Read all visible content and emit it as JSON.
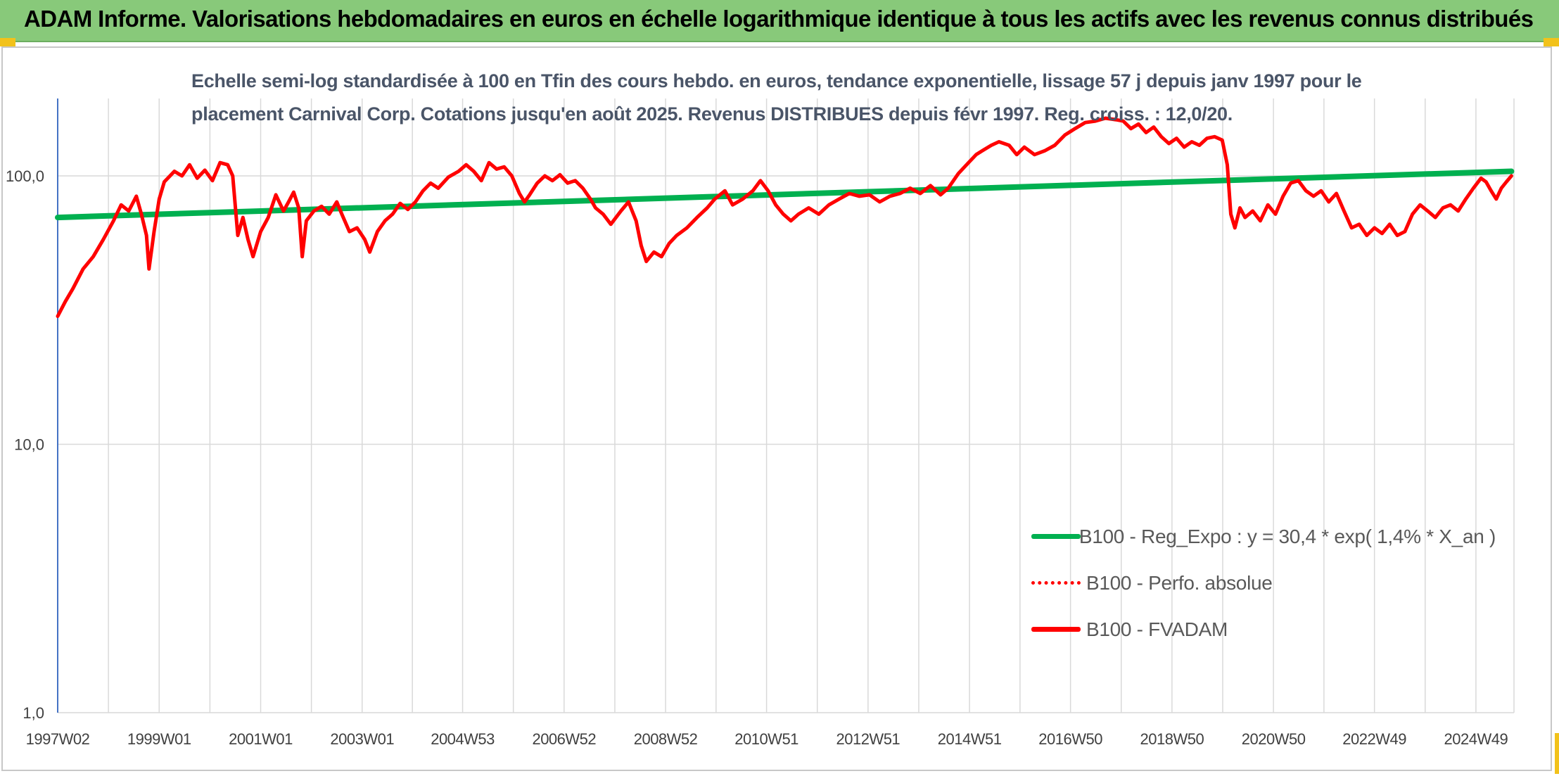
{
  "header": {
    "title": "ADAM Informe. Valorisations hebdomadaires en euros en échelle logarithmique identique à tous les actifs avec les revenus connus distribués"
  },
  "colors": {
    "header_bg": "#88c97a",
    "accent": "#f2c21b",
    "trend": "#00b050",
    "series": "#ff0000",
    "grid": "#d9d9d9",
    "axis": "#4472c4"
  },
  "chart_data": {
    "type": "line",
    "title_line1": "Echelle semi-log standardisée à 100 en Tfin des cours hebdo. en euros, tendance exponentielle, lissage 57 j depuis janv 1997 pour le",
    "title_line2": "placement Carnival Corp. Cotations jusqu'en août 2025. Revenus DISTRIBUES depuis févr 1997. Reg. croiss. : 12,0/20.",
    "y_scale": "log",
    "ylim": [
      1,
      200
    ],
    "y_ticks": [
      "1,0",
      "10,0",
      "100,0"
    ],
    "x_ticks": [
      "1997W02",
      "1999W01",
      "2001W01",
      "2003W01",
      "2004W53",
      "2006W52",
      "2008W52",
      "2010W51",
      "2012W51",
      "2014W51",
      "2016W50",
      "2018W50",
      "2020W50",
      "2022W49",
      "2024W49"
    ],
    "grid": true,
    "legend_position": "right-bottom",
    "series": [
      {
        "name": "B100 - Reg_Expo : y = 30,4 * exp( 1,4% *  X_an )",
        "style": "solid-green",
        "points": [
          [
            1997.0,
            70.0
          ],
          [
            2025.65,
            104.0
          ]
        ]
      },
      {
        "name": "B100 - Perfo. absolue",
        "style": "dotted-red",
        "points": []
      },
      {
        "name": "B100 - FVADAM",
        "style": "solid-red",
        "points": [
          [
            1997.0,
            30
          ],
          [
            1997.15,
            34
          ],
          [
            1997.3,
            38
          ],
          [
            1997.5,
            45
          ],
          [
            1997.7,
            50
          ],
          [
            1997.9,
            58
          ],
          [
            1998.1,
            68
          ],
          [
            1998.25,
            78
          ],
          [
            1998.4,
            74
          ],
          [
            1998.55,
            84
          ],
          [
            1998.65,
            72
          ],
          [
            1998.75,
            60
          ],
          [
            1998.8,
            45
          ],
          [
            1998.9,
            62
          ],
          [
            1999.0,
            82
          ],
          [
            1999.1,
            95
          ],
          [
            1999.3,
            104
          ],
          [
            1999.45,
            100
          ],
          [
            1999.6,
            110
          ],
          [
            1999.75,
            98
          ],
          [
            1999.9,
            105
          ],
          [
            2000.05,
            96
          ],
          [
            2000.2,
            112
          ],
          [
            2000.35,
            110
          ],
          [
            2000.45,
            100
          ],
          [
            2000.55,
            60
          ],
          [
            2000.65,
            70
          ],
          [
            2000.75,
            58
          ],
          [
            2000.85,
            50
          ],
          [
            2001.0,
            62
          ],
          [
            2001.15,
            70
          ],
          [
            2001.3,
            85
          ],
          [
            2001.45,
            74
          ],
          [
            2001.55,
            80
          ],
          [
            2001.65,
            87
          ],
          [
            2001.75,
            76
          ],
          [
            2001.82,
            50
          ],
          [
            2001.9,
            68
          ],
          [
            2002.05,
            74
          ],
          [
            2002.2,
            77
          ],
          [
            2002.35,
            72
          ],
          [
            2002.5,
            80
          ],
          [
            2002.6,
            72
          ],
          [
            2002.75,
            62
          ],
          [
            2002.9,
            64
          ],
          [
            2003.05,
            58
          ],
          [
            2003.15,
            52
          ],
          [
            2003.3,
            62
          ],
          [
            2003.45,
            68
          ],
          [
            2003.6,
            72
          ],
          [
            2003.75,
            79
          ],
          [
            2003.9,
            75
          ],
          [
            2004.05,
            80
          ],
          [
            2004.2,
            88
          ],
          [
            2004.35,
            94
          ],
          [
            2004.5,
            90
          ],
          [
            2004.7,
            99
          ],
          [
            2004.9,
            104
          ],
          [
            2005.05,
            110
          ],
          [
            2005.2,
            104
          ],
          [
            2005.35,
            96
          ],
          [
            2005.5,
            112
          ],
          [
            2005.65,
            106
          ],
          [
            2005.8,
            108
          ],
          [
            2005.95,
            100
          ],
          [
            2006.1,
            86
          ],
          [
            2006.2,
            80
          ],
          [
            2006.3,
            85
          ],
          [
            2006.45,
            94
          ],
          [
            2006.6,
            100
          ],
          [
            2006.75,
            96
          ],
          [
            2006.9,
            101
          ],
          [
            2007.05,
            94
          ],
          [
            2007.2,
            96
          ],
          [
            2007.35,
            90
          ],
          [
            2007.5,
            82
          ],
          [
            2007.6,
            76
          ],
          [
            2007.75,
            72
          ],
          [
            2007.9,
            66
          ],
          [
            2008.1,
            74
          ],
          [
            2008.25,
            80
          ],
          [
            2008.4,
            68
          ],
          [
            2008.5,
            55
          ],
          [
            2008.6,
            48
          ],
          [
            2008.75,
            52
          ],
          [
            2008.9,
            50
          ],
          [
            2009.05,
            56
          ],
          [
            2009.2,
            60
          ],
          [
            2009.4,
            64
          ],
          [
            2009.6,
            70
          ],
          [
            2009.8,
            76
          ],
          [
            2009.95,
            82
          ],
          [
            2010.15,
            88
          ],
          [
            2010.3,
            78
          ],
          [
            2010.5,
            82
          ],
          [
            2010.7,
            88
          ],
          [
            2010.85,
            96
          ],
          [
            2011.0,
            88
          ],
          [
            2011.15,
            78
          ],
          [
            2011.3,
            72
          ],
          [
            2011.45,
            68
          ],
          [
            2011.6,
            72
          ],
          [
            2011.8,
            76
          ],
          [
            2012.0,
            72
          ],
          [
            2012.2,
            78
          ],
          [
            2012.4,
            82
          ],
          [
            2012.6,
            86
          ],
          [
            2012.8,
            84
          ],
          [
            2013.0,
            85
          ],
          [
            2013.2,
            80
          ],
          [
            2013.4,
            84
          ],
          [
            2013.6,
            86
          ],
          [
            2013.8,
            90
          ],
          [
            2014.0,
            86
          ],
          [
            2014.2,
            92
          ],
          [
            2014.4,
            85
          ],
          [
            2014.55,
            90
          ],
          [
            2014.75,
            102
          ],
          [
            2014.95,
            112
          ],
          [
            2015.1,
            120
          ],
          [
            2015.25,
            125
          ],
          [
            2015.4,
            130
          ],
          [
            2015.55,
            134
          ],
          [
            2015.75,
            130
          ],
          [
            2015.9,
            120
          ],
          [
            2016.05,
            128
          ],
          [
            2016.25,
            120
          ],
          [
            2016.45,
            124
          ],
          [
            2016.65,
            130
          ],
          [
            2016.85,
            142
          ],
          [
            2017.05,
            150
          ],
          [
            2017.25,
            158
          ],
          [
            2017.45,
            160
          ],
          [
            2017.65,
            164
          ],
          [
            2017.85,
            162
          ],
          [
            2018.0,
            160
          ],
          [
            2018.15,
            150
          ],
          [
            2018.3,
            156
          ],
          [
            2018.45,
            145
          ],
          [
            2018.6,
            152
          ],
          [
            2018.75,
            140
          ],
          [
            2018.9,
            132
          ],
          [
            2019.05,
            138
          ],
          [
            2019.2,
            128
          ],
          [
            2019.35,
            134
          ],
          [
            2019.5,
            130
          ],
          [
            2019.65,
            138
          ],
          [
            2019.8,
            140
          ],
          [
            2019.95,
            136
          ],
          [
            2020.05,
            110
          ],
          [
            2020.12,
            72
          ],
          [
            2020.2,
            64
          ],
          [
            2020.3,
            76
          ],
          [
            2020.4,
            70
          ],
          [
            2020.55,
            74
          ],
          [
            2020.7,
            68
          ],
          [
            2020.85,
            78
          ],
          [
            2021.0,
            72
          ],
          [
            2021.15,
            84
          ],
          [
            2021.3,
            94
          ],
          [
            2021.45,
            96
          ],
          [
            2021.6,
            88
          ],
          [
            2021.75,
            84
          ],
          [
            2021.9,
            88
          ],
          [
            2022.05,
            80
          ],
          [
            2022.2,
            86
          ],
          [
            2022.35,
            74
          ],
          [
            2022.5,
            64
          ],
          [
            2022.65,
            66
          ],
          [
            2022.8,
            60
          ],
          [
            2022.95,
            64
          ],
          [
            2023.1,
            61
          ],
          [
            2023.25,
            66
          ],
          [
            2023.4,
            60
          ],
          [
            2023.55,
            62
          ],
          [
            2023.7,
            72
          ],
          [
            2023.85,
            78
          ],
          [
            2024.0,
            74
          ],
          [
            2024.15,
            70
          ],
          [
            2024.3,
            76
          ],
          [
            2024.45,
            78
          ],
          [
            2024.6,
            74
          ],
          [
            2024.75,
            82
          ],
          [
            2024.9,
            90
          ],
          [
            2025.05,
            98
          ],
          [
            2025.15,
            95
          ],
          [
            2025.25,
            88
          ],
          [
            2025.35,
            82
          ],
          [
            2025.45,
            90
          ],
          [
            2025.55,
            95
          ],
          [
            2025.65,
            100
          ]
        ]
      }
    ]
  }
}
